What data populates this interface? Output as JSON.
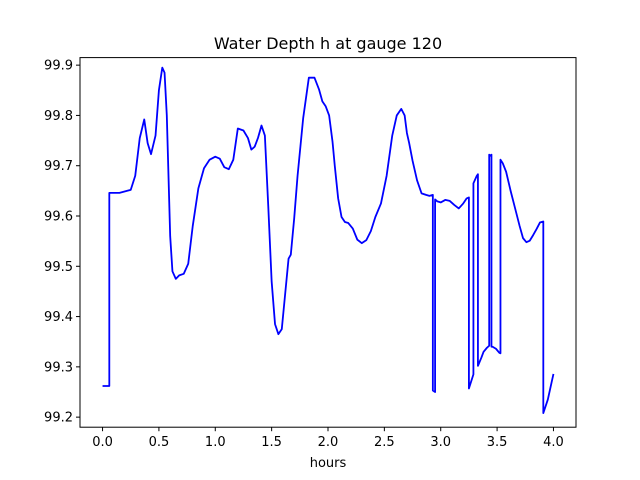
{
  "chart_data": {
    "type": "line",
    "title": "Water Depth h at gauge 120",
    "xlabel": "hours",
    "ylabel": "",
    "xlim": [
      -0.2,
      4.2
    ],
    "ylim": [
      99.18,
      99.915
    ],
    "grid": false,
    "legend": "none",
    "xticks": [
      0.0,
      0.5,
      1.0,
      1.5,
      2.0,
      2.5,
      3.0,
      3.5,
      4.0
    ],
    "xtick_labels": [
      "0.0",
      "0.5",
      "1.0",
      "1.5",
      "2.0",
      "2.5",
      "3.0",
      "3.5",
      "4.0"
    ],
    "yticks": [
      99.2,
      99.3,
      99.4,
      99.5,
      99.6,
      99.7,
      99.8,
      99.9
    ],
    "ytick_labels": [
      "99.2",
      "99.3",
      "99.4",
      "99.5",
      "99.6",
      "99.7",
      "99.8",
      "99.9"
    ],
    "series": [
      {
        "color": "#0000ff",
        "x": [
          0.0,
          0.06,
          0.06,
          0.07,
          0.15,
          0.25,
          0.29,
          0.33,
          0.37,
          0.4,
          0.43,
          0.47,
          0.5,
          0.53,
          0.55,
          0.57,
          0.6,
          0.62,
          0.65,
          0.68,
          0.72,
          0.76,
          0.8,
          0.85,
          0.9,
          0.95,
          1.0,
          1.04,
          1.08,
          1.12,
          1.16,
          1.2,
          1.25,
          1.29,
          1.32,
          1.35,
          1.38,
          1.41,
          1.44,
          1.47,
          1.5,
          1.53,
          1.56,
          1.59,
          1.62,
          1.65,
          1.67,
          1.7,
          1.73,
          1.78,
          1.83,
          1.88,
          1.92,
          1.95,
          1.98,
          2.01,
          2.04,
          2.06,
          2.09,
          2.12,
          2.15,
          2.18,
          2.22,
          2.26,
          2.3,
          2.34,
          2.38,
          2.42,
          2.47,
          2.52,
          2.57,
          2.61,
          2.65,
          2.68,
          2.7,
          2.72,
          2.75,
          2.79,
          2.83,
          2.87,
          2.9,
          2.93,
          2.93,
          2.93,
          2.95,
          2.95,
          2.97,
          3.0,
          3.04,
          3.08,
          3.12,
          3.16,
          3.2,
          3.23,
          3.25,
          3.25,
          3.29,
          3.29,
          3.32,
          3.33,
          3.33,
          3.36,
          3.38,
          3.41,
          3.43,
          3.43,
          3.44,
          3.45,
          3.45,
          3.46,
          3.49,
          3.52,
          3.53,
          3.53,
          3.55,
          3.58,
          3.62,
          3.66,
          3.7,
          3.73,
          3.76,
          3.79,
          3.82,
          3.85,
          3.88,
          3.91,
          3.91,
          3.95,
          4.0
        ],
        "y": [
          99.262,
          99.262,
          99.646,
          99.646,
          99.646,
          99.652,
          99.68,
          99.755,
          99.792,
          99.745,
          99.723,
          99.76,
          99.85,
          99.895,
          99.885,
          99.8,
          99.56,
          99.49,
          99.475,
          99.482,
          99.485,
          99.505,
          99.58,
          99.655,
          99.695,
          99.712,
          99.718,
          99.714,
          99.697,
          99.693,
          99.712,
          99.774,
          99.77,
          99.755,
          99.732,
          99.738,
          99.756,
          99.78,
          99.76,
          99.62,
          99.47,
          99.385,
          99.365,
          99.375,
          99.445,
          99.515,
          99.523,
          99.595,
          99.68,
          99.795,
          99.875,
          99.875,
          99.852,
          99.828,
          99.818,
          99.8,
          99.748,
          99.7,
          99.635,
          99.598,
          99.588,
          99.586,
          99.575,
          99.553,
          99.546,
          99.552,
          99.57,
          99.598,
          99.625,
          99.68,
          99.76,
          99.8,
          99.813,
          99.8,
          99.765,
          99.745,
          99.71,
          99.671,
          99.645,
          99.642,
          99.64,
          99.642,
          99.253,
          99.253,
          99.25,
          99.633,
          99.629,
          99.627,
          99.632,
          99.63,
          99.622,
          99.615,
          99.625,
          99.635,
          99.637,
          99.257,
          99.285,
          99.665,
          99.68,
          99.683,
          99.302,
          99.318,
          99.33,
          99.338,
          99.342,
          99.722,
          99.72,
          99.722,
          99.34,
          99.34,
          99.336,
          99.328,
          99.327,
          99.712,
          99.705,
          99.688,
          99.65,
          99.615,
          99.58,
          99.556,
          99.548,
          99.551,
          99.562,
          99.574,
          99.587,
          99.589,
          99.208,
          99.235,
          99.286
        ]
      }
    ]
  }
}
